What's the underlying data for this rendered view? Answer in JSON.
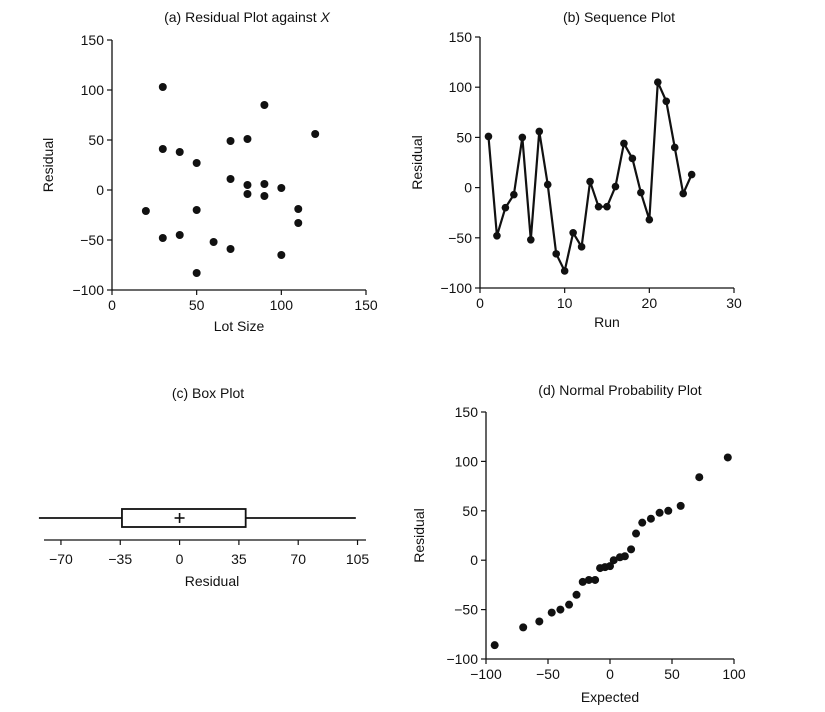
{
  "chart_data": [
    {
      "id": "a",
      "type": "scatter",
      "title": "(a) Residual Plot against ",
      "title_italic": "X",
      "xlabel": "Lot Size",
      "ylabel": "Residual",
      "xlim": [
        0,
        150
      ],
      "ylim": [
        -100,
        150
      ],
      "xticks": [
        0,
        50,
        100,
        150
      ],
      "yticks": [
        -100,
        -50,
        0,
        50,
        100,
        150
      ],
      "xtick_labels": [
        "0",
        "50",
        "100",
        "150"
      ],
      "ytick_labels": [
        "−100",
        "−50",
        "0",
        "50",
        "100",
        "150"
      ],
      "points": [
        [
          20,
          -21
        ],
        [
          30,
          103
        ],
        [
          30,
          41
        ],
        [
          30,
          -48
        ],
        [
          40,
          38
        ],
        [
          40,
          -45
        ],
        [
          50,
          27
        ],
        [
          50,
          -20
        ],
        [
          50,
          -83
        ],
        [
          60,
          -52
        ],
        [
          70,
          49
        ],
        [
          70,
          11
        ],
        [
          70,
          -59
        ],
        [
          80,
          51
        ],
        [
          80,
          5
        ],
        [
          80,
          -4
        ],
        [
          90,
          85
        ],
        [
          90,
          6
        ],
        [
          90,
          -6
        ],
        [
          100,
          2
        ],
        [
          100,
          -65
        ],
        [
          110,
          -19
        ],
        [
          110,
          -33
        ],
        [
          120,
          56
        ]
      ]
    },
    {
      "id": "b",
      "type": "line",
      "title": "(b) Sequence Plot",
      "xlabel": "Run",
      "ylabel": "Residual",
      "xlim": [
        0,
        30
      ],
      "ylim": [
        -100,
        150
      ],
      "xticks": [
        0,
        10,
        20,
        30
      ],
      "yticks": [
        -100,
        -50,
        0,
        50,
        100,
        150
      ],
      "xtick_labels": [
        "0",
        "10",
        "20",
        "30"
      ],
      "ytick_labels": [
        "−100",
        "−50",
        "0",
        "50",
        "100",
        "150"
      ],
      "x": [
        1,
        2,
        3,
        4,
        5,
        6,
        7,
        8,
        9,
        10,
        11,
        12,
        13,
        14,
        15,
        16,
        17,
        18,
        19,
        20,
        21,
        22,
        23,
        24,
        25
      ],
      "y": [
        51,
        -48,
        -20,
        -7,
        50,
        -52,
        56,
        3,
        -66,
        -83,
        -45,
        -59,
        6,
        -19,
        -19,
        1,
        44,
        29,
        -5,
        -32,
        105,
        86,
        40,
        -6,
        13
      ]
    },
    {
      "id": "c",
      "type": "box",
      "title": "(c) Box Plot",
      "xlabel": "Residual",
      "xlim": [
        -80,
        110
      ],
      "xticks": [
        -70,
        -35,
        0,
        35,
        70,
        105
      ],
      "xtick_labels": [
        "−70",
        "−35",
        "0",
        "35",
        "70",
        "105"
      ],
      "whisker_low": -83,
      "q1": -34,
      "median": 0,
      "q3": 39,
      "whisker_high": 104,
      "mean": 0,
      "mean_marker": "+"
    },
    {
      "id": "d",
      "type": "scatter",
      "title": "(d) Normal Probability Plot",
      "xlabel": "Expected",
      "ylabel": "Residual",
      "xlim": [
        -100,
        100
      ],
      "ylim": [
        -100,
        150
      ],
      "xticks": [
        -100,
        -50,
        0,
        50,
        100
      ],
      "yticks": [
        -100,
        -50,
        0,
        50,
        100,
        150
      ],
      "xtick_labels": [
        "−100",
        "−50",
        "0",
        "50",
        "100"
      ],
      "ytick_labels": [
        "−100",
        "−50",
        "0",
        "50",
        "100",
        "150"
      ],
      "points": [
        [
          -93,
          -86
        ],
        [
          -70,
          -68
        ],
        [
          -57,
          -62
        ],
        [
          -47,
          -53
        ],
        [
          -40,
          -50
        ],
        [
          -33,
          -45
        ],
        [
          -27,
          -35
        ],
        [
          -22,
          -22
        ],
        [
          -17,
          -20
        ],
        [
          -12,
          -20
        ],
        [
          -8,
          -8
        ],
        [
          -4,
          -7
        ],
        [
          0,
          -6
        ],
        [
          3,
          0
        ],
        [
          8,
          3
        ],
        [
          12,
          4
        ],
        [
          17,
          11
        ],
        [
          21,
          27
        ],
        [
          26,
          38
        ],
        [
          33,
          42
        ],
        [
          40,
          48
        ],
        [
          47,
          50
        ],
        [
          57,
          55
        ],
        [
          72,
          84
        ],
        [
          95,
          104
        ]
      ]
    }
  ]
}
